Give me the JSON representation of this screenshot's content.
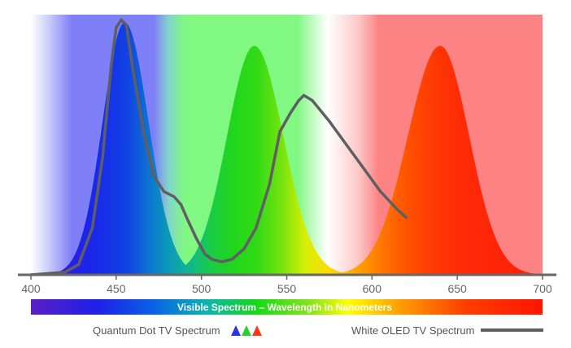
{
  "chart_data": {
    "type": "line",
    "title": "",
    "xlabel": "Visible Spectrum – Wavelength in Nanometers",
    "ylabel": "",
    "xlim": [
      400,
      700
    ],
    "ylim": [
      0,
      1
    ],
    "x_ticks": [
      "400",
      "450",
      "500",
      "550",
      "600",
      "650",
      "700"
    ],
    "x_tick_values": [
      400,
      450,
      500,
      550,
      600,
      650,
      700
    ],
    "background_bands": [
      {
        "name": "blue",
        "from": 400,
        "to": 475,
        "color": "#7f7ff8"
      },
      {
        "name": "green",
        "from": 475,
        "to": 585,
        "color": "#80f882"
      },
      {
        "name": "red",
        "from": 585,
        "to": 700,
        "color": "#fd8283"
      }
    ],
    "series": [
      {
        "name": "Quantum Dot TV Spectrum - Blue",
        "peak_nm": 455,
        "peak": 0.97,
        "width_left": 13,
        "width_right": 14
      },
      {
        "name": "Quantum Dot TV Spectrum - Green",
        "peak_nm": 531,
        "peak": 0.88,
        "width_left": 16,
        "width_right": 17
      },
      {
        "name": "Quantum Dot TV Spectrum - Red",
        "peak_nm": 640,
        "peak": 0.88,
        "width_left": 19,
        "width_right": 17
      },
      {
        "name": "White OLED TV Spectrum",
        "color": "#5f5f63",
        "x": [
          400,
          420,
          428,
          436,
          442,
          447,
          450,
          453,
          456,
          460,
          466,
          472,
          478,
          484,
          488,
          492,
          497,
          502,
          506,
          512,
          518,
          525,
          532,
          540,
          546,
          552,
          557,
          560,
          565,
          575,
          585,
          595,
          605,
          615,
          620
        ],
        "y": [
          0,
          0.01,
          0.04,
          0.18,
          0.45,
          0.8,
          0.95,
          0.98,
          0.96,
          0.78,
          0.55,
          0.38,
          0.32,
          0.3,
          0.27,
          0.21,
          0.14,
          0.08,
          0.06,
          0.05,
          0.06,
          0.1,
          0.18,
          0.35,
          0.55,
          0.62,
          0.67,
          0.69,
          0.67,
          0.59,
          0.5,
          0.41,
          0.32,
          0.25,
          0.22
        ]
      }
    ],
    "legend": [
      {
        "label": "Quantum Dot TV Spectrum",
        "marker": "rgb-peaks"
      },
      {
        "label": "White OLED TV Spectrum",
        "marker": "gray-line",
        "color": "#5f5f63"
      }
    ],
    "legend_position": "bottom",
    "grid": false
  }
}
